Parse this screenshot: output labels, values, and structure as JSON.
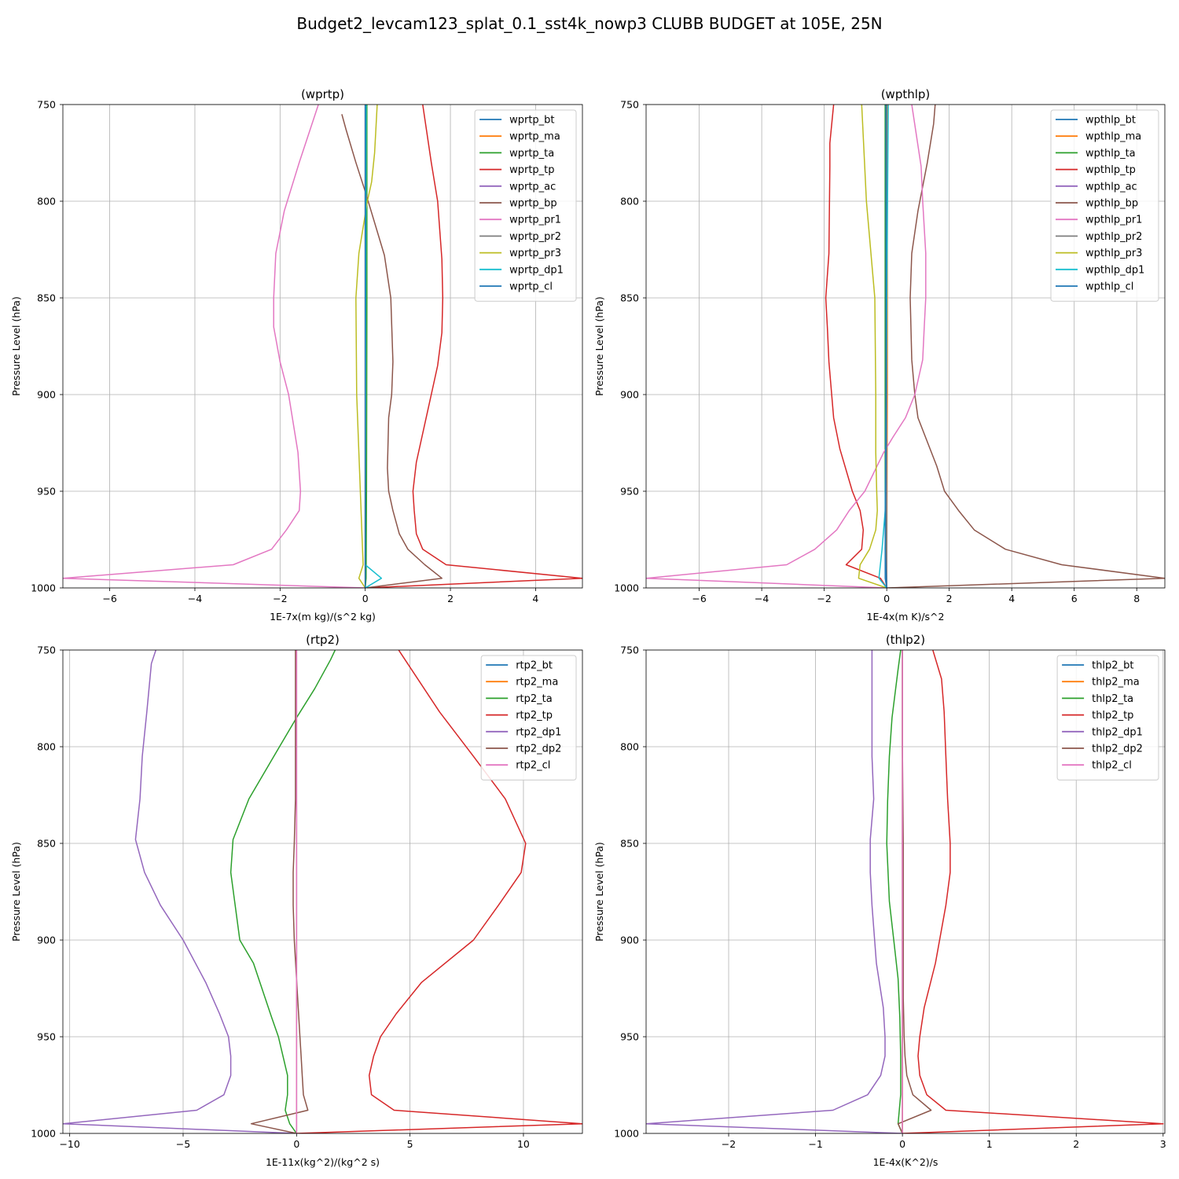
{
  "figure": {
    "suptitle": "Budget2_levcam123_splat_0.1_sst4k_nowp3 CLUBB BUDGET at 105E, 25N"
  },
  "chart_data": [
    {
      "type": "line",
      "title": "(wprtp)",
      "xlabel": "1E-7x(m kg)/(s^2 kg)",
      "ylabel": "Pressure Level (hPa)",
      "xlim": [
        -7.1,
        5.1
      ],
      "ylim": [
        1000,
        750
      ],
      "xticks": [
        -6,
        -4,
        -2,
        0,
        2,
        4
      ],
      "xtick_labels": [
        "−6",
        "−4",
        "−2",
        "0",
        "2",
        "4"
      ],
      "yticks": [
        750,
        800,
        850,
        900,
        950,
        1000
      ],
      "ytick_labels": [
        "750",
        "800",
        "850",
        "900",
        "950",
        "1000"
      ],
      "grid": true,
      "legend_position": "top-right",
      "series": [
        {
          "name": "wprtp_bt",
          "color": "#1f77b4",
          "x": [
            0,
            0,
            0,
            0
          ],
          "y": [
            1000,
            995,
            900,
            750
          ]
        },
        {
          "name": "wprtp_ma",
          "color": "#ff7f0e",
          "x": [
            0,
            0,
            0
          ],
          "y": [
            1000,
            900,
            750
          ]
        },
        {
          "name": "wprtp_ta",
          "color": "#2ca02c",
          "x": [
            0,
            0.02,
            0.03,
            0.04,
            0.04
          ],
          "y": [
            1000,
            995,
            950,
            850,
            750
          ]
        },
        {
          "name": "wprtp_tp",
          "color": "#d62728",
          "x": [
            0,
            5.1,
            1.9,
            1.35,
            1.2,
            1.15,
            1.12,
            1.2,
            1.55,
            1.7,
            1.8,
            1.82,
            1.8,
            1.7,
            1.55,
            1.35
          ],
          "y": [
            1000,
            995,
            988,
            980,
            972,
            960,
            950,
            935,
            900,
            885,
            868,
            850,
            830,
            800,
            780,
            750
          ]
        },
        {
          "name": "wprtp_ac",
          "color": "#9467bd",
          "x": [
            0,
            0
          ],
          "y": [
            1000,
            750
          ]
        },
        {
          "name": "wprtp_bp",
          "color": "#8c564b",
          "x": [
            0,
            1.8,
            1.4,
            1.0,
            0.8,
            0.65,
            0.55,
            0.52,
            0.55,
            0.62,
            0.65,
            0.6,
            0.45,
            0.0,
            -0.22,
            -0.45,
            -0.55
          ],
          "y": [
            1000,
            995,
            988,
            980,
            972,
            960,
            950,
            938,
            912,
            900,
            883,
            850,
            828,
            795,
            780,
            763,
            755
          ]
        },
        {
          "name": "wprtp_pr1",
          "color": "#e377c2",
          "x": [
            0,
            -7.1,
            -3.1,
            -2.2,
            -1.85,
            -1.55,
            -1.52,
            -1.58,
            -1.8,
            -2.0,
            -2.15,
            -2.15,
            -2.1,
            -1.9,
            -1.55,
            -1.1
          ],
          "y": [
            1000,
            995,
            988,
            980,
            970,
            960,
            950,
            930,
            900,
            883,
            865,
            850,
            827,
            805,
            780,
            750
          ]
        },
        {
          "name": "wprtp_pr2",
          "color": "#7f7f7f",
          "x": [
            0,
            0
          ],
          "y": [
            1000,
            750
          ]
        },
        {
          "name": "wprtp_pr3",
          "color": "#bcbd22",
          "x": [
            0,
            -0.15,
            -0.05,
            -0.08,
            -0.2,
            -0.22,
            -0.15,
            0.05,
            0.15,
            0.22,
            0.28
          ],
          "y": [
            1000,
            995,
            988,
            970,
            900,
            850,
            827,
            800,
            790,
            775,
            750
          ]
        },
        {
          "name": "wprtp_dp1",
          "color": "#17becf",
          "x": [
            0,
            0.38,
            0.0,
            0.0,
            0.02
          ],
          "y": [
            1000,
            995,
            988,
            960,
            750
          ]
        },
        {
          "name": "wprtp_cl",
          "color": "#1f77b4",
          "x": [
            0,
            0,
            0
          ],
          "y": [
            1000,
            900,
            750
          ]
        }
      ]
    },
    {
      "type": "line",
      "title": "(wpthlp)",
      "xlabel": "1E-4x(m K)/s^2",
      "ylabel": "Pressure Level (hPa)",
      "xlim": [
        -7.7,
        8.9
      ],
      "ylim": [
        1000,
        750
      ],
      "xticks": [
        -6,
        -4,
        -2,
        0,
        2,
        4,
        6,
        8
      ],
      "xtick_labels": [
        "−6",
        "−4",
        "−2",
        "0",
        "2",
        "4",
        "6",
        "8"
      ],
      "yticks": [
        750,
        800,
        850,
        900,
        950,
        1000
      ],
      "ytick_labels": [
        "750",
        "800",
        "850",
        "900",
        "950",
        "1000"
      ],
      "grid": true,
      "legend_position": "top-right",
      "series": [
        {
          "name": "wpthlp_bt",
          "color": "#1f77b4",
          "x": [
            0,
            -0.05,
            -0.05,
            -0.05
          ],
          "y": [
            1000,
            995,
            900,
            750
          ]
        },
        {
          "name": "wpthlp_ma",
          "color": "#ff7f0e",
          "x": [
            0,
            0.02,
            0.02
          ],
          "y": [
            1000,
            900,
            750
          ]
        },
        {
          "name": "wpthlp_ta",
          "color": "#2ca02c",
          "x": [
            0,
            -0.05,
            -0.05
          ],
          "y": [
            1000,
            950,
            750
          ]
        },
        {
          "name": "wpthlp_tp",
          "color": "#d62728",
          "x": [
            0,
            -0.2,
            -1.3,
            -0.8,
            -0.75,
            -0.85,
            -1.1,
            -1.5,
            -1.7,
            -1.85,
            -1.9,
            -1.95,
            -1.85,
            -1.82,
            -1.82,
            -1.7
          ],
          "y": [
            1000,
            995,
            988,
            980,
            970,
            960,
            950,
            928,
            912,
            883,
            865,
            850,
            827,
            782,
            770,
            750
          ]
        },
        {
          "name": "wpthlp_ac",
          "color": "#9467bd",
          "x": [
            0,
            -0.02
          ],
          "y": [
            1000,
            750
          ]
        },
        {
          "name": "wpthlp_bp",
          "color": "#8c564b",
          "x": [
            0,
            8.9,
            5.6,
            3.8,
            2.8,
            2.3,
            1.85,
            1.6,
            1.0,
            0.9,
            0.8,
            0.75,
            0.8,
            1.0,
            1.3,
            1.5,
            1.55
          ],
          "y": [
            1000,
            995,
            988,
            980,
            970,
            960,
            950,
            937,
            912,
            900,
            882,
            850,
            827,
            805,
            780,
            760,
            750
          ]
        },
        {
          "name": "wpthlp_pr1",
          "color": "#e377c2",
          "x": [
            0,
            -7.7,
            -3.2,
            -2.3,
            -1.6,
            -1.2,
            -0.7,
            -0.4,
            -0.1,
            0.2,
            0.6,
            0.9,
            1.15,
            1.2,
            1.25,
            1.25,
            1.15,
            1.1,
            0.8
          ],
          "y": [
            1000,
            995,
            988,
            980,
            970,
            960,
            950,
            940,
            930,
            922,
            912,
            900,
            882,
            865,
            850,
            827,
            800,
            782,
            750
          ]
        },
        {
          "name": "wpthlp_pr2",
          "color": "#7f7f7f",
          "x": [
            0,
            0
          ],
          "y": [
            1000,
            750
          ]
        },
        {
          "name": "wpthlp_pr3",
          "color": "#bcbd22",
          "x": [
            0,
            -0.9,
            -0.85,
            -0.55,
            -0.35,
            -0.3,
            -0.32,
            -0.35,
            -0.35,
            -0.38,
            -0.65,
            -0.8
          ],
          "y": [
            1000,
            995,
            988,
            980,
            970,
            960,
            950,
            930,
            900,
            850,
            800,
            750
          ]
        },
        {
          "name": "wpthlp_dp1",
          "color": "#17becf",
          "x": [
            0,
            -0.25,
            -0.15,
            -0.05,
            0.05
          ],
          "y": [
            1000,
            995,
            980,
            960,
            750
          ]
        },
        {
          "name": "wpthlp_cl",
          "color": "#1f77b4",
          "x": [
            0,
            -0.05,
            -0.02,
            -0.02
          ],
          "y": [
            1000,
            980,
            900,
            750
          ]
        }
      ]
    },
    {
      "type": "line",
      "title": "(rtp2)",
      "xlabel": "1E-11x(kg^2)/(kg^2 s)",
      "ylabel": "Pressure Level (hPa)",
      "xlim": [
        -10.3,
        12.6
      ],
      "ylim": [
        1000,
        750
      ],
      "xticks": [
        -10,
        -5,
        0,
        5,
        10
      ],
      "xtick_labels": [
        "−10",
        "−5",
        "0",
        "5",
        "10"
      ],
      "yticks": [
        750,
        800,
        850,
        900,
        950,
        1000
      ],
      "ytick_labels": [
        "750",
        "800",
        "850",
        "900",
        "950",
        "1000"
      ],
      "grid": true,
      "legend_position": "top-right",
      "series": [
        {
          "name": "rtp2_bt",
          "color": "#1f77b4",
          "x": [
            0,
            0
          ],
          "y": [
            1000,
            750
          ]
        },
        {
          "name": "rtp2_ma",
          "color": "#ff7f0e",
          "x": [
            0,
            0
          ],
          "y": [
            1000,
            750
          ]
        },
        {
          "name": "rtp2_ta",
          "color": "#2ca02c",
          "x": [
            0,
            -0.3,
            -0.5,
            -0.4,
            -0.4,
            -0.6,
            -0.8,
            -1.1,
            -1.9,
            -2.5,
            -2.9,
            -2.8,
            -2.1,
            -1.0,
            0.0,
            0.8,
            1.5,
            1.7
          ],
          "y": [
            1000,
            995,
            988,
            980,
            970,
            960,
            950,
            940,
            912,
            900,
            865,
            848,
            827,
            805,
            785,
            770,
            755,
            750
          ]
        },
        {
          "name": "rtp2_tp",
          "color": "#d62728",
          "x": [
            0,
            12.6,
            4.3,
            3.3,
            3.2,
            3.4,
            3.7,
            4.4,
            5.5,
            7.8,
            8.9,
            9.9,
            10.1,
            9.2,
            7.8,
            6.3,
            4.5
          ],
          "y": [
            1000,
            995,
            988,
            980,
            970,
            960,
            950,
            938,
            922,
            900,
            882,
            865,
            850,
            827,
            805,
            782,
            750
          ]
        },
        {
          "name": "rtp2_dp1",
          "color": "#9467bd",
          "x": [
            0,
            -10.3,
            -4.4,
            -3.2,
            -2.9,
            -2.9,
            -3.0,
            -3.4,
            -4.0,
            -5.0,
            -6.0,
            -6.7,
            -7.1,
            -6.9,
            -6.8,
            -6.6,
            -6.4,
            -6.2
          ],
          "y": [
            1000,
            995,
            988,
            980,
            970,
            960,
            950,
            938,
            922,
            900,
            882,
            865,
            848,
            827,
            805,
            782,
            757,
            750
          ]
        },
        {
          "name": "rtp2_dp2",
          "color": "#8c564b",
          "x": [
            0,
            -2.0,
            0.5,
            0.3,
            0.25,
            0.2,
            0.15,
            0.05,
            -0.1,
            -0.15,
            -0.15,
            -0.1,
            -0.05,
            -0.05
          ],
          "y": [
            1000,
            995,
            988,
            980,
            970,
            960,
            950,
            930,
            900,
            882,
            865,
            850,
            827,
            750
          ]
        },
        {
          "name": "rtp2_cl",
          "color": "#e377c2",
          "x": [
            0,
            0,
            0
          ],
          "y": [
            1000,
            900,
            750
          ]
        }
      ]
    },
    {
      "type": "line",
      "title": "(thlp2)",
      "xlabel": "1E-4x(K^2)/s",
      "ylabel": "Pressure Level (hPa)",
      "xlim": [
        -2.95,
        3.02
      ],
      "ylim": [
        1000,
        750
      ],
      "xticks": [
        -2,
        -1,
        0,
        1,
        2,
        3
      ],
      "xtick_labels": [
        "−2",
        "−1",
        "0",
        "1",
        "2",
        "3"
      ],
      "yticks": [
        750,
        800,
        850,
        900,
        950,
        1000
      ],
      "ytick_labels": [
        "750",
        "800",
        "850",
        "900",
        "950",
        "1000"
      ],
      "grid": true,
      "legend_position": "top-right",
      "series": [
        {
          "name": "thlp2_bt",
          "color": "#1f77b4",
          "x": [
            0,
            0
          ],
          "y": [
            1000,
            750
          ]
        },
        {
          "name": "thlp2_ma",
          "color": "#ff7f0e",
          "x": [
            0,
            0
          ],
          "y": [
            1000,
            750
          ]
        },
        {
          "name": "thlp2_ta",
          "color": "#2ca02c",
          "x": [
            0,
            -0.05,
            -0.02,
            -0.02,
            -0.03,
            -0.05,
            -0.1,
            -0.15,
            -0.18,
            -0.17,
            -0.15,
            -0.12,
            -0.05,
            -0.02
          ],
          "y": [
            1000,
            995,
            980,
            960,
            940,
            920,
            900,
            880,
            850,
            828,
            805,
            785,
            760,
            750
          ]
        },
        {
          "name": "thlp2_tp",
          "color": "#d62728",
          "x": [
            0,
            3.0,
            0.5,
            0.28,
            0.2,
            0.18,
            0.2,
            0.25,
            0.38,
            0.5,
            0.55,
            0.55,
            0.52,
            0.5,
            0.48,
            0.45,
            0.35
          ],
          "y": [
            1000,
            995,
            988,
            980,
            970,
            960,
            950,
            935,
            912,
            882,
            865,
            850,
            827,
            805,
            782,
            765,
            750
          ]
        },
        {
          "name": "thlp2_dp1",
          "color": "#9467bd",
          "x": [
            0,
            -2.95,
            -0.8,
            -0.4,
            -0.25,
            -0.2,
            -0.2,
            -0.22,
            -0.3,
            -0.35,
            -0.37,
            -0.37,
            -0.33,
            -0.35,
            -0.35,
            -0.35
          ],
          "y": [
            1000,
            995,
            988,
            980,
            970,
            960,
            950,
            935,
            912,
            882,
            865,
            848,
            827,
            805,
            782,
            750
          ]
        },
        {
          "name": "thlp2_dp2",
          "color": "#8c564b",
          "x": [
            0,
            -0.05,
            0.33,
            0.12,
            0.05,
            0.03,
            0.02,
            0.01,
            0.01,
            0.01,
            0.0,
            0.0
          ],
          "y": [
            1000,
            995,
            988,
            980,
            970,
            960,
            950,
            930,
            900,
            850,
            800,
            750
          ]
        },
        {
          "name": "thlp2_cl",
          "color": "#e377c2",
          "x": [
            0,
            0,
            0
          ],
          "y": [
            1000,
            900,
            750
          ]
        }
      ]
    }
  ]
}
